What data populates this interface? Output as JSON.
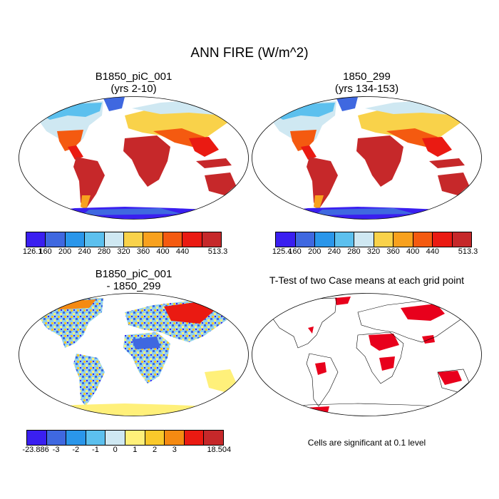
{
  "main_title": "ANN FIRE (W/m^2)",
  "panels": {
    "p1": {
      "title_line1": "B1850_piC_001",
      "title_line2": "(yrs 2-10)"
    },
    "p2": {
      "title_line1": "1850_299",
      "title_line2": "(yrs 134-153)"
    },
    "p3": {
      "title_line1": "B1850_piC_001",
      "title_line2": "- 1850_299"
    },
    "p4": {
      "title_line1": "T-Test of two Case means at each grid point"
    }
  },
  "colorbars": {
    "abs1": {
      "colors": [
        "#3a1ff0",
        "#3f68e0",
        "#2a96ea",
        "#5cc0ee",
        "#cfe8f2",
        "#f9d24a",
        "#f8a11e",
        "#f45a10",
        "#ea1a12",
        "#c6282a"
      ],
      "labels": [
        "126.1",
        "160",
        "200",
        "240",
        "280",
        "320",
        "360",
        "400",
        "440",
        "513.3"
      ]
    },
    "abs2": {
      "colors": [
        "#3a1ff0",
        "#3f68e0",
        "#2a96ea",
        "#5cc0ee",
        "#cfe8f2",
        "#f9d24a",
        "#f8a11e",
        "#f45a10",
        "#ea1a12",
        "#c6282a"
      ],
      "labels": [
        "125.4",
        "160",
        "200",
        "240",
        "280",
        "320",
        "360",
        "400",
        "440",
        "513.3"
      ]
    },
    "diff": {
      "colors": [
        "#3a1ff0",
        "#3f68e0",
        "#2a96ea",
        "#5cc0ee",
        "#cfe8f2",
        "#fff07a",
        "#f9c92b",
        "#f58a12",
        "#ea1a12",
        "#c6282a"
      ],
      "labels": [
        "-23.886",
        "-3",
        "-2",
        "-1",
        "0",
        "1",
        "2",
        "3",
        "18.504"
      ]
    }
  },
  "footnote": "Cells are significant at 0.1 level",
  "colors": {
    "ocean": "#ffffff",
    "coast": "#000000",
    "significant": "#e8001c"
  }
}
